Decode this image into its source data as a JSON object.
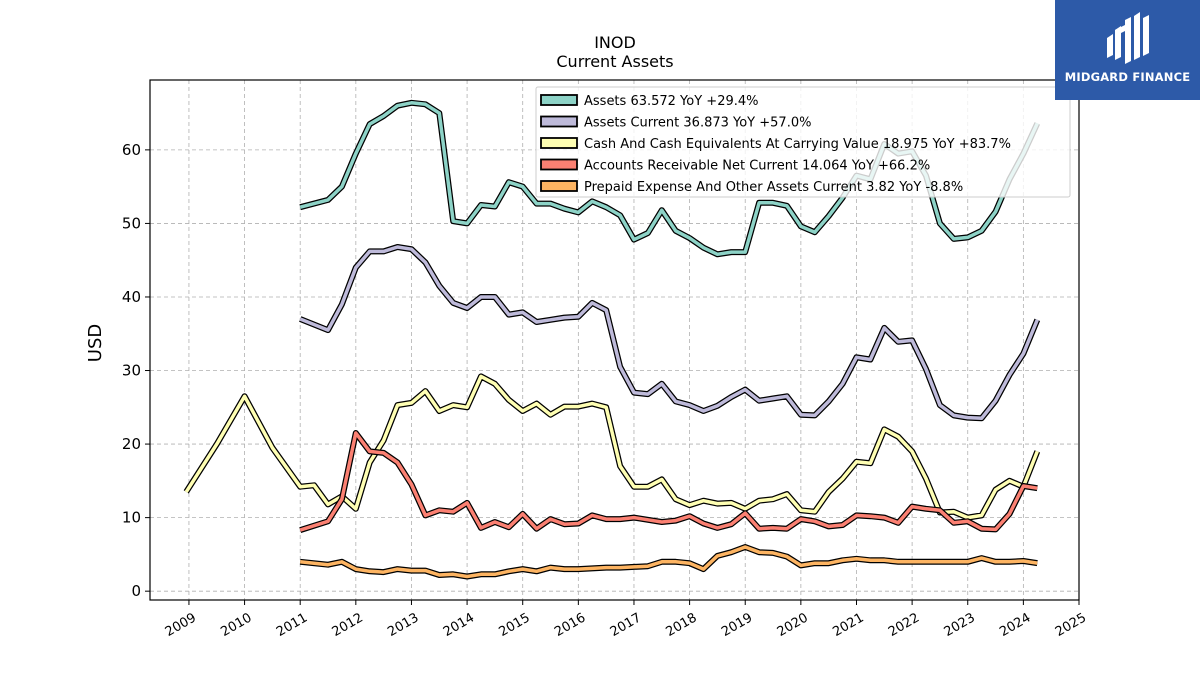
{
  "brand": {
    "name": "MIDGARD FINANCE",
    "icon": "midgard-logo-icon",
    "color": "#2d5aa8"
  },
  "chart_data": {
    "type": "line",
    "title": "INOD",
    "subtitle": "Current  Assets",
    "ylabel": "USD",
    "xlabel": "",
    "xlim": [
      2008.3,
      2025.0
    ],
    "ylim": [
      -1.2,
      69.5
    ],
    "grid": true,
    "legend_position": "top-right",
    "x_ticks": [
      2009,
      2010,
      2011,
      2012,
      2013,
      2014,
      2015,
      2016,
      2017,
      2018,
      2019,
      2020,
      2021,
      2022,
      2023,
      2024,
      2025
    ],
    "y_ticks": [
      0,
      10,
      20,
      30,
      40,
      50,
      60
    ],
    "series": [
      {
        "name": "Assets",
        "legend": "Assets  63.572 YoY +29.4%",
        "color": "#8dd3c7",
        "x": [
          2011.0,
          2011.5,
          2011.75,
          2012.0,
          2012.25,
          2012.5,
          2012.75,
          2013.0,
          2013.25,
          2013.5,
          2013.75,
          2014.0,
          2014.25,
          2014.5,
          2014.75,
          2015.0,
          2015.25,
          2015.5,
          2015.75,
          2016.0,
          2016.25,
          2016.5,
          2016.75,
          2017.0,
          2017.25,
          2017.5,
          2017.75,
          2018.0,
          2018.25,
          2018.5,
          2018.75,
          2019.0,
          2019.25,
          2019.5,
          2019.75,
          2020.0,
          2020.25,
          2020.5,
          2020.75,
          2021.0,
          2021.25,
          2021.5,
          2021.75,
          2022.0,
          2022.25,
          2022.5,
          2022.75,
          2023.0,
          2023.25,
          2023.5,
          2023.75,
          2024.0,
          2024.25
        ],
        "values": [
          52.2,
          53.2,
          55.0,
          59.5,
          63.5,
          64.6,
          66.0,
          66.4,
          66.2,
          65.0,
          50.3,
          50.0,
          52.5,
          52.3,
          55.6,
          55.0,
          52.7,
          52.7,
          52.0,
          51.5,
          53.0,
          52.2,
          51.1,
          47.8,
          48.7,
          51.8,
          49.0,
          48.0,
          46.7,
          45.8,
          46.1,
          46.1,
          52.8,
          52.8,
          52.4,
          49.6,
          48.8,
          51.0,
          53.5,
          56.5,
          56.0,
          60.8,
          59.5,
          59.8,
          56.5,
          50.0,
          47.9,
          48.1,
          49.0,
          51.6,
          56.0,
          59.5,
          63.6
        ]
      },
      {
        "name": "Assets Current",
        "legend": "Assets Current  36.873 YoY +57.0%",
        "color": "#bebada",
        "x": [
          2011.0,
          2011.5,
          2011.75,
          2012.0,
          2012.25,
          2012.5,
          2012.75,
          2013.0,
          2013.25,
          2013.5,
          2013.75,
          2014.0,
          2014.25,
          2014.5,
          2014.75,
          2015.0,
          2015.25,
          2015.5,
          2015.75,
          2016.0,
          2016.25,
          2016.5,
          2016.75,
          2017.0,
          2017.25,
          2017.5,
          2017.75,
          2018.0,
          2018.25,
          2018.5,
          2018.75,
          2019.0,
          2019.25,
          2019.5,
          2019.75,
          2020.0,
          2020.25,
          2020.5,
          2020.75,
          2021.0,
          2021.25,
          2021.5,
          2021.75,
          2022.0,
          2022.25,
          2022.5,
          2022.75,
          2023.0,
          2023.25,
          2023.5,
          2023.75,
          2024.0,
          2024.25
        ],
        "values": [
          37.0,
          35.5,
          39.0,
          44.0,
          46.2,
          46.2,
          46.8,
          46.5,
          44.7,
          41.5,
          39.2,
          38.5,
          40.0,
          40.0,
          37.6,
          37.9,
          36.6,
          36.9,
          37.2,
          37.3,
          39.2,
          38.2,
          30.5,
          27.0,
          26.8,
          28.2,
          25.8,
          25.3,
          24.5,
          25.2,
          26.4,
          27.4,
          25.9,
          26.2,
          26.5,
          24.0,
          23.9,
          25.8,
          28.2,
          31.8,
          31.5,
          35.8,
          33.9,
          34.1,
          30.2,
          25.3,
          23.9,
          23.6,
          23.5,
          25.9,
          29.4,
          32.3,
          36.9
        ]
      },
      {
        "name": "Cash And Cash Equivalents At Carrying Value",
        "legend": "Cash And Cash Equivalents At Carrying Value  18.975 YoY +83.7%",
        "color": "#ffffb3",
        "x": [
          2008.95,
          2009.5,
          2010.0,
          2010.5,
          2011.0,
          2011.25,
          2011.5,
          2011.75,
          2012.0,
          2012.25,
          2012.5,
          2012.75,
          2013.0,
          2013.25,
          2013.5,
          2013.75,
          2014.0,
          2014.25,
          2014.5,
          2014.75,
          2015.0,
          2015.25,
          2015.5,
          2015.75,
          2016.0,
          2016.25,
          2016.5,
          2016.75,
          2017.0,
          2017.25,
          2017.5,
          2017.75,
          2018.0,
          2018.25,
          2018.5,
          2018.75,
          2019.0,
          2019.25,
          2019.5,
          2019.75,
          2020.0,
          2020.25,
          2020.5,
          2020.75,
          2021.0,
          2021.25,
          2021.5,
          2021.75,
          2022.0,
          2022.25,
          2022.5,
          2022.75,
          2023.0,
          2023.25,
          2023.5,
          2023.75,
          2024.0,
          2024.25
        ],
        "values": [
          13.5,
          20.0,
          26.5,
          19.5,
          14.2,
          14.4,
          11.8,
          12.9,
          11.2,
          17.5,
          20.5,
          25.3,
          25.6,
          27.2,
          24.5,
          25.3,
          25.0,
          29.2,
          28.2,
          26.0,
          24.5,
          25.5,
          24.0,
          25.1,
          25.1,
          25.5,
          25.0,
          17.0,
          14.2,
          14.2,
          15.2,
          12.5,
          11.7,
          12.3,
          11.9,
          12.0,
          11.2,
          12.3,
          12.5,
          13.2,
          11.0,
          10.8,
          13.5,
          15.3,
          17.6,
          17.4,
          22.0,
          21.0,
          19.0,
          15.3,
          10.7,
          10.8,
          10.0,
          10.3,
          13.8,
          15.0,
          14.2,
          19.0
        ]
      },
      {
        "name": "Accounts Receivable Net Current",
        "legend": "Accounts Receivable Net Current  14.064 YoY +66.2%",
        "color": "#fb8072",
        "x": [
          2011.0,
          2011.5,
          2011.75,
          2012.0,
          2012.25,
          2012.5,
          2012.75,
          2013.0,
          2013.25,
          2013.5,
          2013.75,
          2014.0,
          2014.25,
          2014.5,
          2014.75,
          2015.0,
          2015.25,
          2015.5,
          2015.75,
          2016.0,
          2016.25,
          2016.5,
          2016.75,
          2017.0,
          2017.25,
          2017.5,
          2017.75,
          2018.0,
          2018.25,
          2018.5,
          2018.75,
          2019.0,
          2019.25,
          2019.5,
          2019.75,
          2020.0,
          2020.25,
          2020.5,
          2020.75,
          2021.0,
          2021.25,
          2021.5,
          2021.75,
          2022.0,
          2022.25,
          2022.5,
          2022.75,
          2023.0,
          2023.25,
          2023.5,
          2023.75,
          2024.0,
          2024.25
        ],
        "values": [
          8.3,
          9.5,
          12.5,
          21.5,
          19.0,
          18.8,
          17.5,
          14.5,
          10.3,
          11.0,
          10.8,
          12.0,
          8.6,
          9.4,
          8.7,
          10.5,
          8.5,
          9.8,
          9.1,
          9.2,
          10.3,
          9.8,
          9.8,
          10.0,
          9.7,
          9.4,
          9.6,
          10.2,
          9.2,
          8.6,
          9.1,
          10.6,
          8.5,
          8.6,
          8.5,
          9.8,
          9.5,
          8.8,
          9.0,
          10.3,
          10.2,
          10.0,
          9.3,
          11.5,
          11.2,
          11.0,
          9.3,
          9.5,
          8.5,
          8.4,
          10.5,
          14.3,
          14.0
        ]
      },
      {
        "name": "Prepaid Expense And Other Assets Current",
        "legend": "Prepaid Expense And Other Assets Current  3.82 YoY -8.8%",
        "color": "#fdb462",
        "x": [
          2011.0,
          2011.5,
          2011.75,
          2012.0,
          2012.25,
          2012.5,
          2012.75,
          2013.0,
          2013.25,
          2013.5,
          2013.75,
          2014.0,
          2014.25,
          2014.5,
          2014.75,
          2015.0,
          2015.25,
          2015.5,
          2015.75,
          2016.0,
          2016.25,
          2016.5,
          2016.75,
          2017.0,
          2017.25,
          2017.5,
          2017.75,
          2018.0,
          2018.25,
          2018.5,
          2018.75,
          2019.0,
          2019.25,
          2019.5,
          2019.75,
          2020.0,
          2020.25,
          2020.5,
          2020.75,
          2021.0,
          2021.25,
          2021.5,
          2021.75,
          2022.0,
          2022.25,
          2022.5,
          2022.75,
          2023.0,
          2023.25,
          2023.5,
          2023.75,
          2024.0,
          2024.25
        ],
        "values": [
          4.0,
          3.6,
          4.0,
          3.0,
          2.7,
          2.6,
          3.0,
          2.8,
          2.8,
          2.2,
          2.3,
          2.0,
          2.3,
          2.3,
          2.7,
          3.0,
          2.7,
          3.2,
          3.0,
          3.0,
          3.1,
          3.2,
          3.2,
          3.3,
          3.4,
          4.0,
          4.0,
          3.8,
          3.0,
          4.8,
          5.3,
          6.0,
          5.3,
          5.2,
          4.7,
          3.5,
          3.8,
          3.8,
          4.2,
          4.4,
          4.2,
          4.2,
          4.0,
          4.0,
          4.0,
          4.0,
          4.0,
          4.0,
          4.5,
          4.0,
          4.0,
          4.1,
          3.82
        ]
      }
    ]
  }
}
